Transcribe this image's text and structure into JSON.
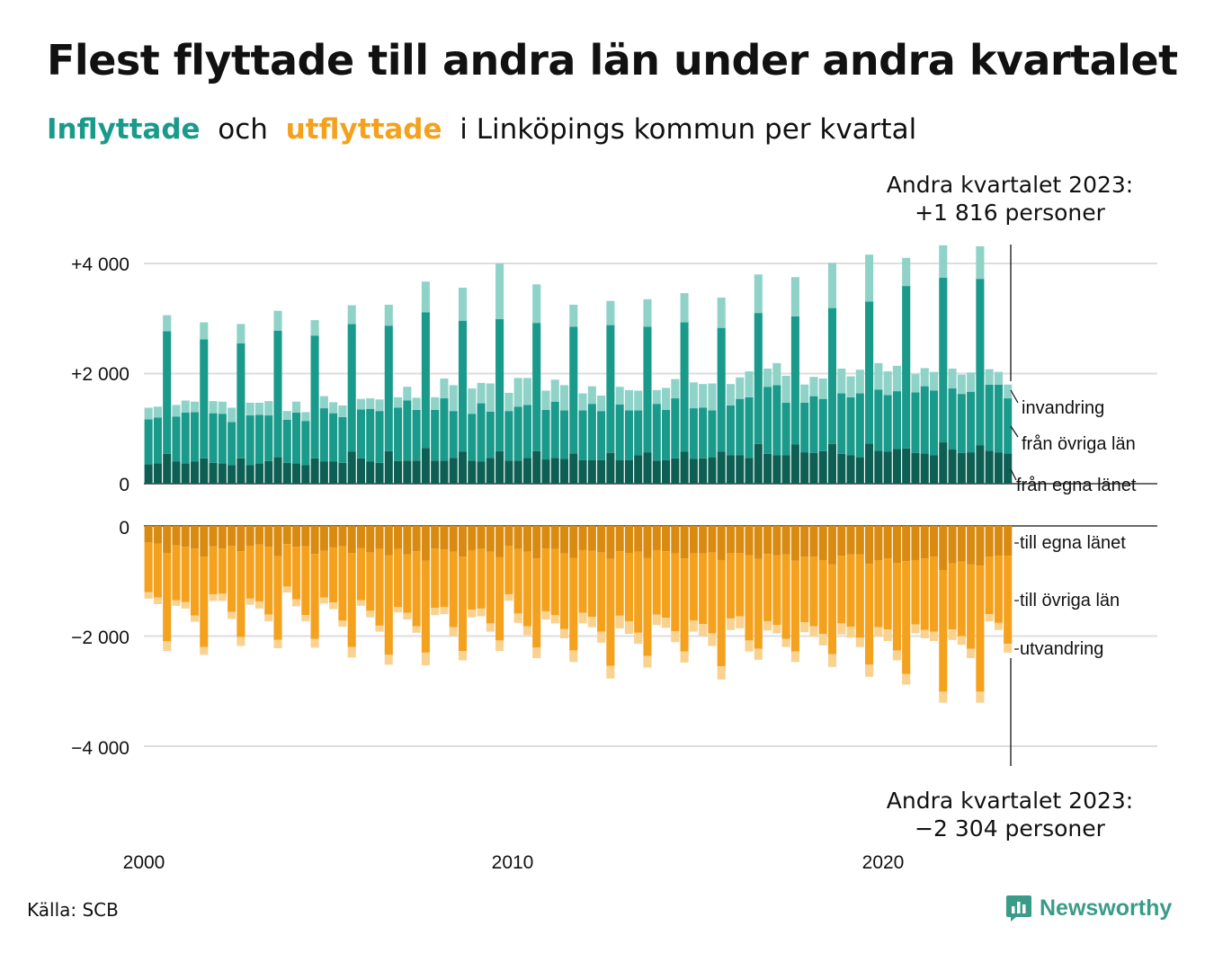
{
  "title": "Flest flyttade till andra län under andra kvartalet",
  "subtitle": {
    "part1": "Inflyttade",
    "part2": "och",
    "part3": "utflyttade",
    "part4": "i Linköpings kommun per kvartal"
  },
  "source": "Källa: SCB",
  "logo": "Newsworthy",
  "colors": {
    "in_egna": "#0d5e53",
    "in_ovriga": "#1a9a8b",
    "in_invandring": "#8fd3c8",
    "out_egna": "#d98a10",
    "out_ovriga": "#f4a11d",
    "out_utvandring": "#f9d28f",
    "grid": "#dddddd"
  },
  "annotations": {
    "top_line1": "Andra kvartalet 2023:",
    "top_line2": "+1 816 personer",
    "bottom_line1": "Andra kvartalet 2023:",
    "bottom_line2": "−2 304 personer"
  },
  "chart_data": {
    "type": "bar",
    "stacked": true,
    "x_ticks": [
      "2000",
      "2010",
      "2020"
    ],
    "y_ticks_top": [
      "+4 000",
      "+2 000",
      "0"
    ],
    "y_ticks_bottom": [
      "0",
      "−2 000",
      "−4 000"
    ],
    "ylim_top": [
      0,
      4000
    ],
    "ylim_bottom": [
      -4000,
      0
    ],
    "x_start": "2000 Q1",
    "x_end": "2023 Q2",
    "quarters_per_year": 4,
    "in_series": [
      {
        "name": "från egna länet",
        "values": [
          350,
          370,
          540,
          400,
          370,
          400,
          460,
          380,
          370,
          340,
          460,
          340,
          370,
          410,
          480,
          380,
          370,
          340,
          460,
          400,
          400,
          380,
          580,
          460,
          400,
          380,
          590,
          410,
          420,
          420,
          650,
          420,
          420,
          470,
          580,
          420,
          400,
          470,
          590,
          420,
          420,
          470,
          590,
          440,
          470,
          450,
          550,
          430,
          430,
          430,
          560,
          430,
          430,
          520,
          570,
          420,
          430,
          460,
          580,
          450,
          460,
          480,
          580,
          520,
          520,
          470,
          720,
          540,
          520,
          520,
          710,
          570,
          560,
          590,
          720,
          540,
          520,
          480,
          730,
          600,
          580,
          630,
          640,
          560,
          550,
          520,
          750,
          620,
          560,
          570,
          700,
          600,
          570,
          550
        ]
      },
      {
        "name": "från övriga län",
        "values": [
          820,
          830,
          2230,
          820,
          920,
          900,
          2160,
          900,
          900,
          780,
          2090,
          900,
          880,
          830,
          2300,
          780,
          920,
          800,
          2230,
          970,
          880,
          830,
          2320,
          890,
          960,
          940,
          2280,
          970,
          1090,
          920,
          2460,
          920,
          1130,
          850,
          2380,
          850,
          1060,
          840,
          2400,
          900,
          980,
          960,
          2330,
          900,
          1020,
          880,
          2300,
          900,
          1020,
          890,
          2320,
          1010,
          900,
          810,
          2280,
          1030,
          910,
          1090,
          2350,
          920,
          920,
          850,
          2250,
          900,
          1020,
          1100,
          2380,
          1220,
          1270,
          950,
          2330,
          900,
          1030,
          950,
          2470,
          1100,
          1050,
          1160,
          2580,
          1110,
          1030,
          1050,
          2950,
          1100,
          1220,
          1170,
          2990,
          1110,
          1070,
          1100,
          3020,
          1200,
          1230,
          1000
        ]
      },
      {
        "name": "invandring",
        "values": [
          210,
          200,
          290,
          210,
          220,
          190,
          310,
          220,
          220,
          260,
          350,
          230,
          220,
          260,
          360,
          160,
          200,
          160,
          280,
          220,
          200,
          210,
          340,
          190,
          190,
          210,
          380,
          190,
          250,
          220,
          560,
          230,
          360,
          470,
          600,
          460,
          370,
          510,
          1010,
          330,
          520,
          490,
          700,
          350,
          400,
          460,
          400,
          310,
          320,
          280,
          440,
          320,
          370,
          360,
          500,
          250,
          400,
          350,
          530,
          470,
          430,
          490,
          550,
          390,
          390,
          470,
          700,
          330,
          400,
          490,
          710,
          330,
          350,
          370,
          820,
          450,
          380,
          430,
          850,
          480,
          430,
          460,
          510,
          330,
          330,
          340,
          590,
          360,
          350,
          350,
          590,
          280,
          230,
          250
        ]
      }
    ],
    "out_series": [
      {
        "name": "till egna länet",
        "values": [
          300,
          320,
          490,
          350,
          380,
          410,
          560,
          370,
          410,
          360,
          460,
          360,
          340,
          380,
          550,
          330,
          380,
          370,
          510,
          450,
          390,
          370,
          490,
          400,
          480,
          420,
          530,
          420,
          520,
          460,
          630,
          410,
          430,
          470,
          560,
          440,
          420,
          470,
          570,
          360,
          420,
          470,
          590,
          410,
          420,
          500,
          580,
          440,
          450,
          480,
          600,
          460,
          490,
          470,
          580,
          440,
          460,
          500,
          590,
          500,
          500,
          480,
          620,
          490,
          490,
          530,
          600,
          510,
          530,
          520,
          630,
          560,
          560,
          620,
          700,
          540,
          520,
          520,
          690,
          620,
          590,
          670,
          640,
          620,
          590,
          560,
          800,
          680,
          650,
          700,
          720,
          560,
          540,
          540
        ]
      },
      {
        "name": "till övriga län",
        "values": [
          900,
          980,
          1600,
          1000,
          1000,
          1220,
          1640,
          870,
          820,
          1200,
          1560,
          960,
          1030,
          1230,
          1520,
          770,
          950,
          1250,
          1540,
          850,
          1000,
          1350,
          1710,
          950,
          1060,
          1390,
          1810,
          1050,
          1060,
          1360,
          1670,
          1080,
          1040,
          1370,
          1710,
          1080,
          1080,
          1300,
          1510,
          880,
          1170,
          1350,
          1620,
          1140,
          1200,
          1370,
          1680,
          1140,
          1200,
          1440,
          1940,
          1170,
          1240,
          1470,
          1780,
          1170,
          1210,
          1410,
          1690,
          1220,
          1280,
          1470,
          1930,
          1190,
          1150,
          1550,
          1630,
          1220,
          1270,
          1530,
          1650,
          1190,
          1260,
          1340,
          1630,
          1230,
          1310,
          1510,
          1830,
          1220,
          1290,
          1590,
          2050,
          1170,
          1300,
          1360,
          2210,
          1200,
          1350,
          1530,
          2290,
          1040,
          1220,
          1600
        ]
      },
      {
        "name": "utvandring",
        "values": [
          120,
          120,
          180,
          100,
          120,
          110,
          140,
          120,
          130,
          130,
          160,
          110,
          130,
          120,
          150,
          110,
          130,
          110,
          160,
          110,
          120,
          110,
          190,
          100,
          120,
          110,
          180,
          100,
          120,
          120,
          230,
          130,
          130,
          160,
          170,
          140,
          140,
          150,
          190,
          120,
          170,
          160,
          190,
          150,
          150,
          170,
          210,
          190,
          190,
          200,
          230,
          230,
          230,
          200,
          210,
          190,
          180,
          200,
          200,
          200,
          220,
          230,
          240,
          210,
          220,
          200,
          200,
          170,
          150,
          150,
          190,
          180,
          190,
          210,
          230,
          200,
          200,
          170,
          220,
          170,
          210,
          180,
          190,
          160,
          150,
          170,
          200,
          190,
          160,
          170,
          200,
          130,
          130,
          160
        ]
      }
    ],
    "series_labels": {
      "invandring": "invandring",
      "fran_ovriga": "från övriga län",
      "fran_egna": "från egna länet",
      "till_egna": "till egna länet",
      "till_ovriga": "till övriga län",
      "utvandring": "utvandring"
    }
  }
}
